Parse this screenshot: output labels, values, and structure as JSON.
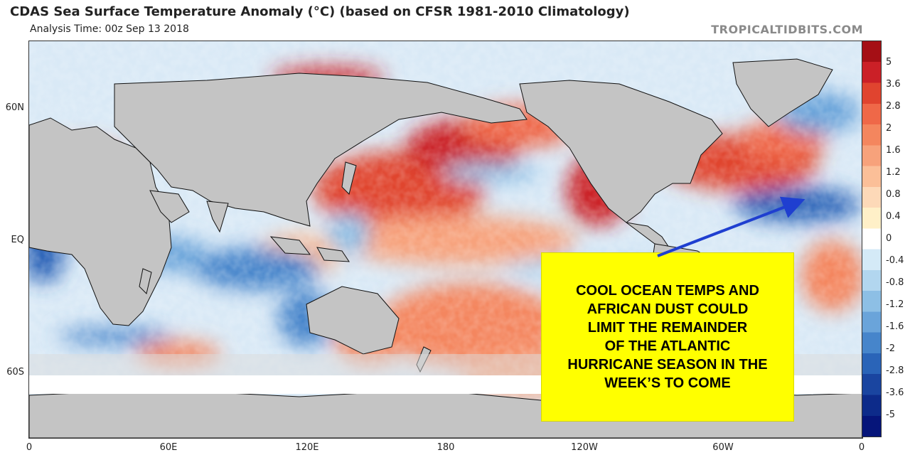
{
  "header": {
    "title": "CDAS Sea Surface Temperature Anomaly (°C) (based on CFSR 1981-2010 Climatology)",
    "subtitle": "Analysis Time: 00z Sep 13 2018",
    "brand": "TROPICALTIDBITS.COM"
  },
  "map": {
    "lat_labels": [
      "60N",
      "EQ",
      "60S"
    ],
    "lon_labels": [
      "0",
      "60E",
      "120E",
      "180",
      "120W",
      "60W",
      "0"
    ]
  },
  "colorbar": {
    "labels": [
      "5",
      "3.6",
      "2.8",
      "2",
      "1.6",
      "1.2",
      "0.8",
      "0.4",
      "0",
      "-0.4",
      "-0.8",
      "-1.2",
      "-1.6",
      "-2",
      "-2.8",
      "-3.6",
      "-5"
    ],
    "colors": [
      "#a50f15",
      "#cb2027",
      "#e0442f",
      "#ef6848",
      "#f4865e",
      "#f7a27b",
      "#fbbf98",
      "#fdd9b8",
      "#fff0c8",
      "#ffffff",
      "#d4eaf7",
      "#b2d6ef",
      "#8dbfe5",
      "#6aa4da",
      "#4685cb",
      "#2a64b8",
      "#1a45a0",
      "#0d2b8a",
      "#06157a"
    ]
  },
  "callout": {
    "lines": [
      "COOL OCEAN TEMPS AND",
      "AFRICAN DUST COULD",
      "LIMIT THE REMAINDER",
      "OF THE ATLANTIC",
      "HURRICANE SEASON IN THE",
      "WEEK’S TO COME"
    ],
    "background": "#ffff00",
    "arrow_color": "#1f3fd0"
  }
}
